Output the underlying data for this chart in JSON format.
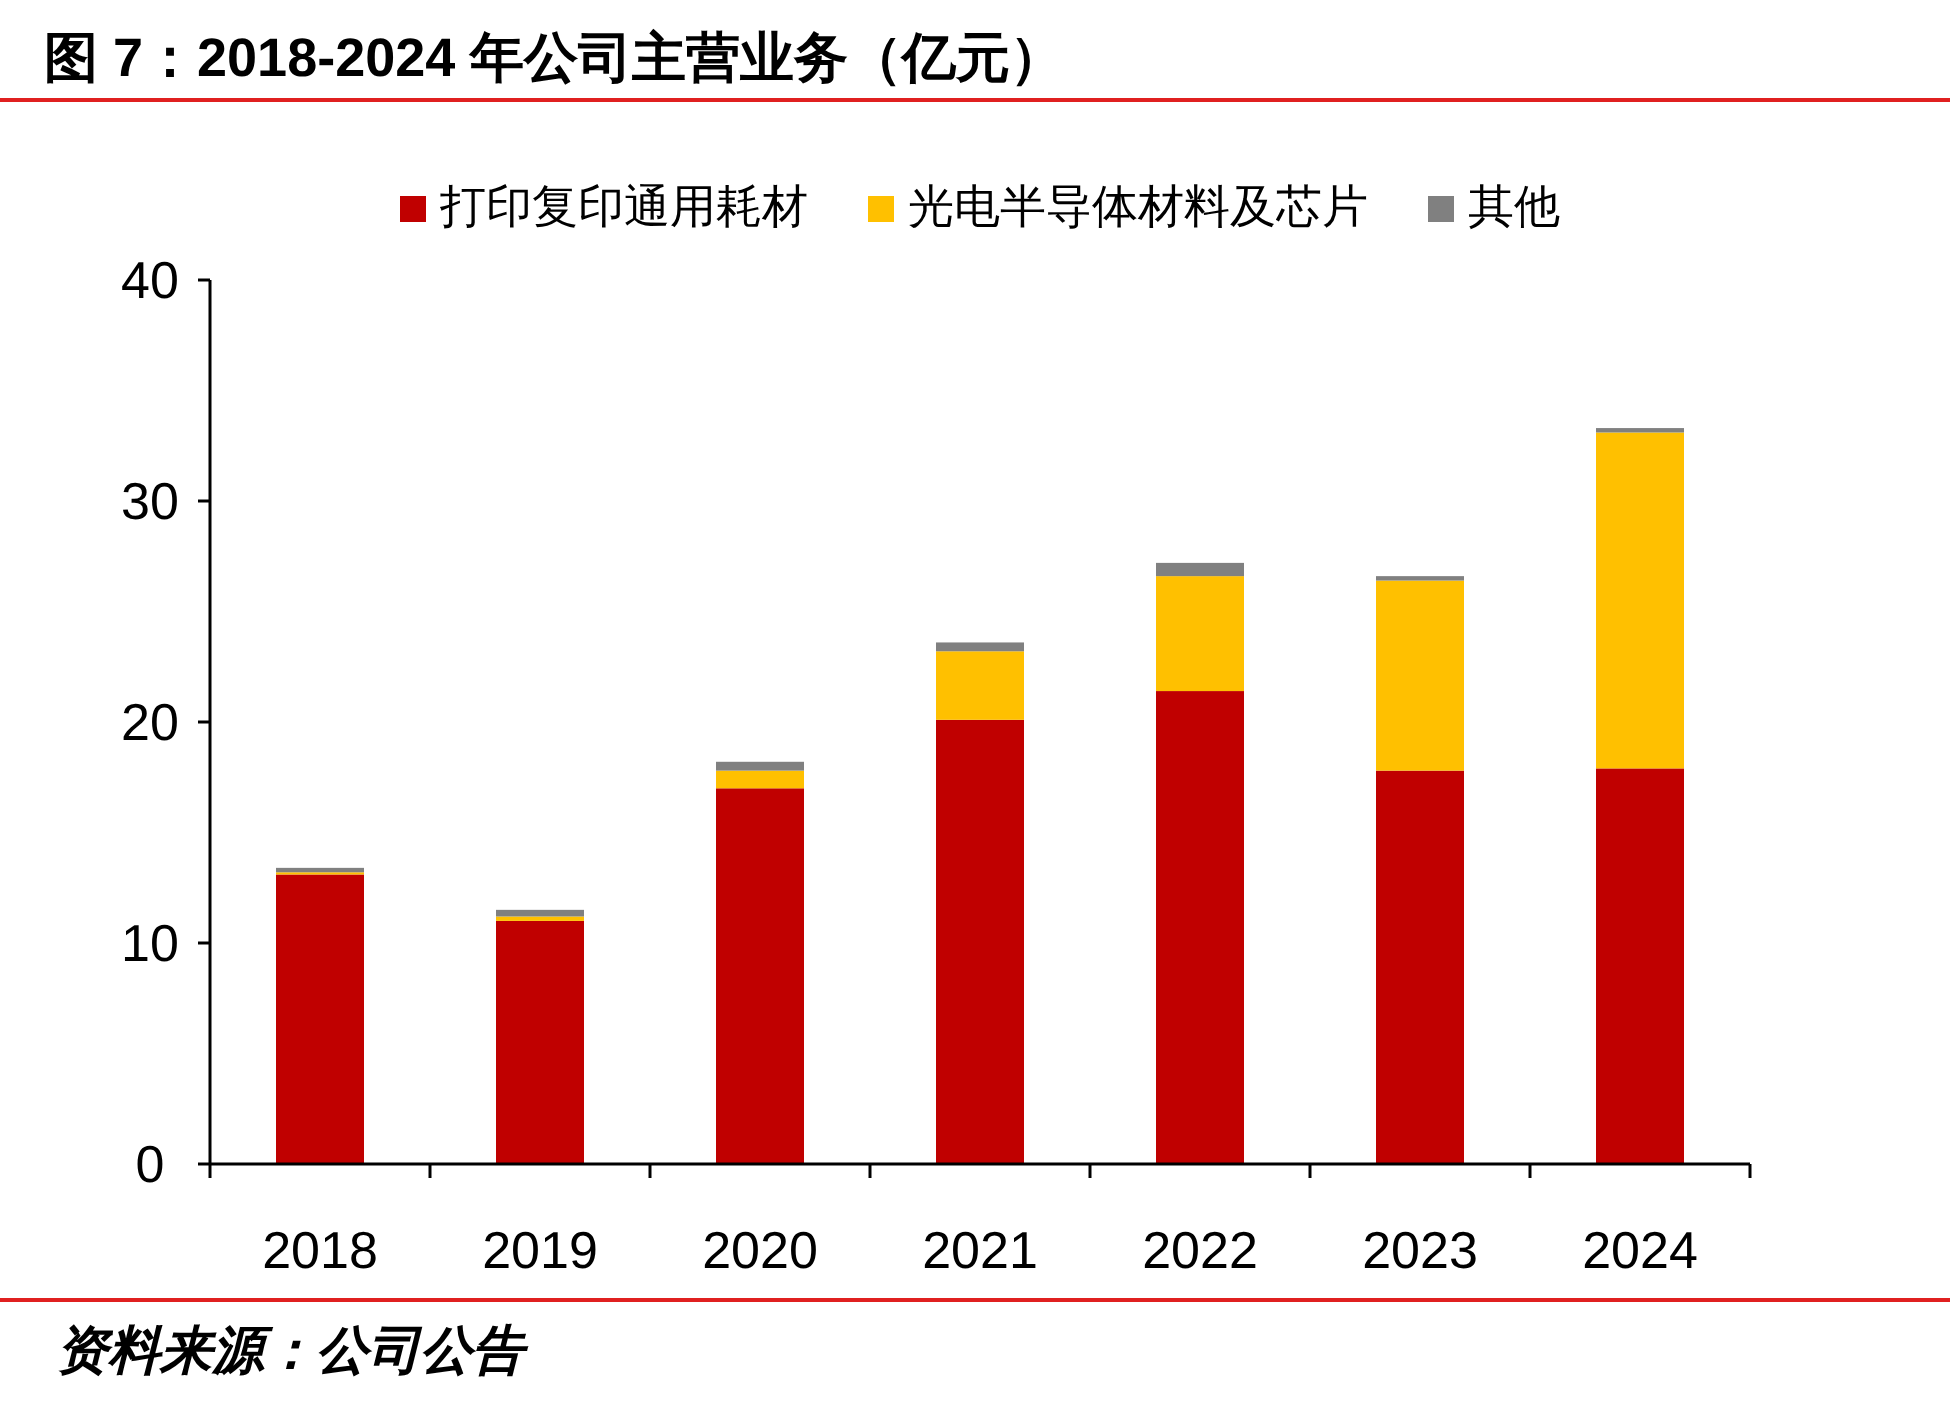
{
  "chart_data": {
    "type": "bar",
    "stacked": true,
    "title": "图 7：2018-2024 年公司主营业务（亿元）",
    "categories": [
      "2018",
      "2019",
      "2020",
      "2021",
      "2022",
      "2023",
      "2024"
    ],
    "series": [
      {
        "name": "打印复印通用耗材",
        "color": "#c00000",
        "values": [
          13.1,
          11.0,
          17.0,
          20.1,
          21.4,
          17.8,
          17.9
        ]
      },
      {
        "name": "光电半导体材料及芯片",
        "color": "#ffc000",
        "values": [
          0.1,
          0.2,
          0.8,
          3.1,
          5.2,
          8.6,
          15.2
        ]
      },
      {
        "name": "其他",
        "color": "#808080",
        "values": [
          0.2,
          0.3,
          0.4,
          0.4,
          0.6,
          0.2,
          0.2
        ]
      }
    ],
    "ylim": [
      0,
      40
    ],
    "yticks": [
      0,
      10,
      20,
      30,
      40
    ],
    "grid": false,
    "legend": "top",
    "annotations": [
      "资料来源：公司公告"
    ]
  }
}
